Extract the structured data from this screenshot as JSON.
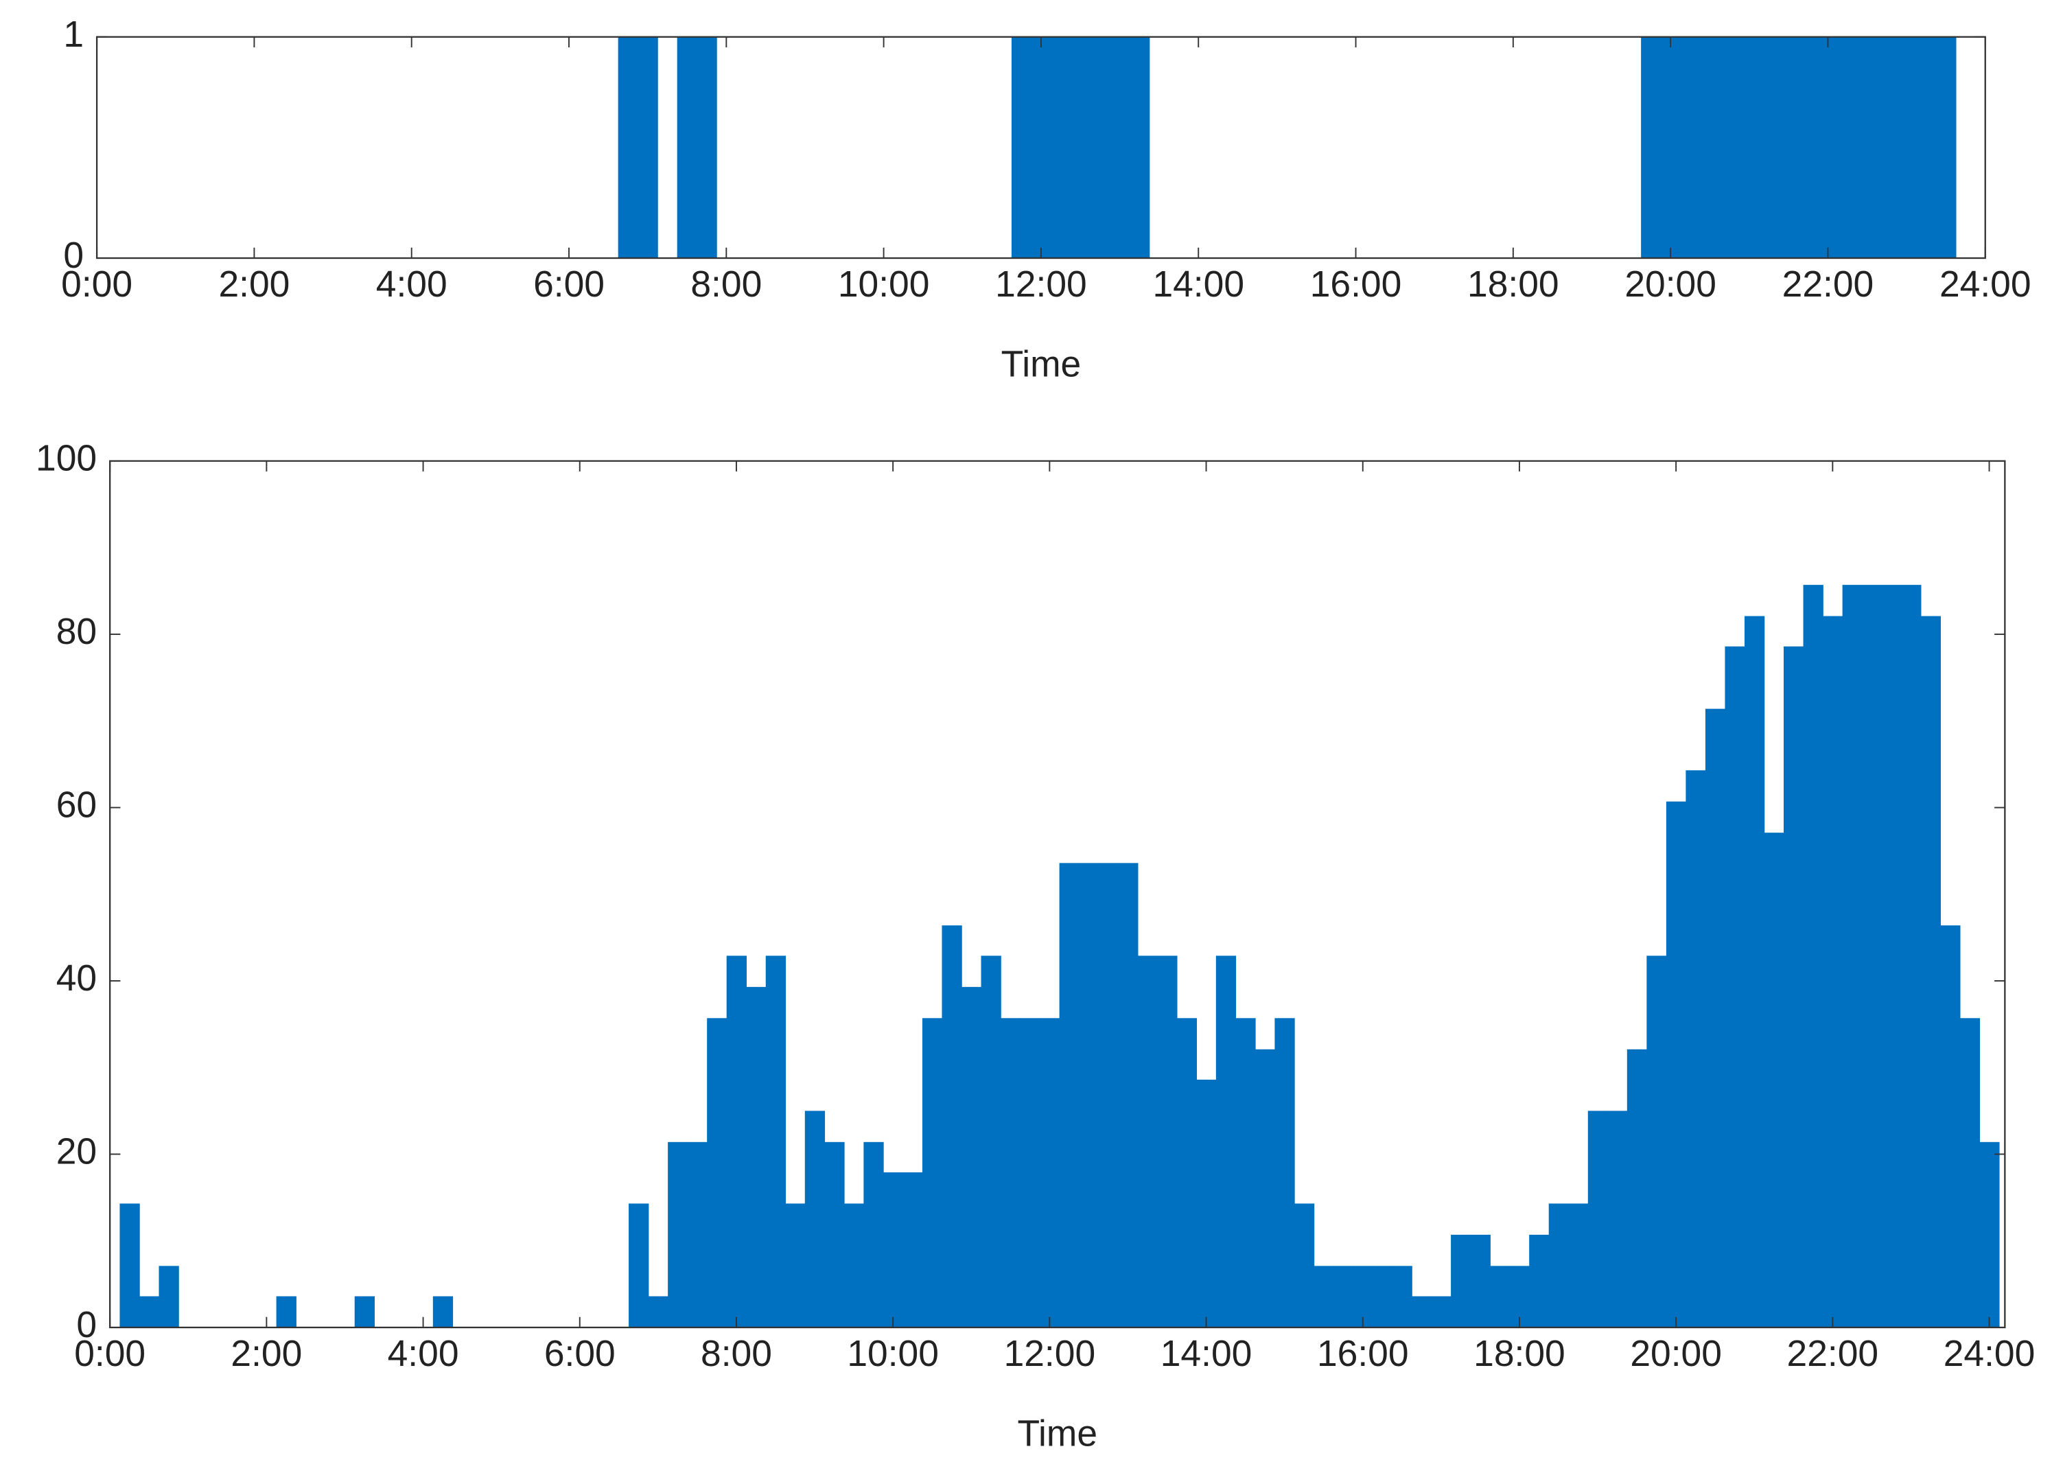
{
  "chart_data": [
    {
      "type": "histogram",
      "xlabel": "Time",
      "color": "#0070c0",
      "bins": [
        0.125,
        0.375,
        0.625,
        0.875,
        1.125,
        1.375,
        1.625,
        1.875,
        2.125,
        2.375,
        2.625,
        2.875,
        3.125,
        3.375,
        3.625,
        3.875,
        4.125,
        4.375,
        4.625,
        4.875,
        5.125,
        5.375,
        5.625,
        5.875,
        6.125,
        6.375,
        6.625,
        6.875,
        7.125,
        7.375,
        7.625,
        7.875,
        8.125,
        8.375,
        8.625,
        8.875,
        9.125,
        9.375,
        9.625,
        9.875,
        10.125,
        10.375,
        10.625,
        10.875,
        11.125,
        11.375,
        11.625,
        11.875,
        12.125,
        12.375,
        12.625,
        12.875,
        13.125,
        13.375,
        13.625,
        13.875,
        14.125,
        14.375,
        14.625,
        14.875,
        15.125,
        15.375,
        15.625,
        15.875,
        16.125,
        16.375,
        16.625,
        16.875,
        17.125,
        17.375,
        17.625,
        17.875,
        18.125,
        18.375,
        18.625,
        18.875,
        19.125,
        19.375,
        19.625,
        19.875,
        20.125,
        20.375,
        20.625,
        20.875,
        21.125,
        21.375,
        21.625,
        21.875,
        22.125,
        22.375,
        22.625,
        22.875,
        23.125,
        23.375,
        23.625,
        23.875,
        24.125
      ],
      "values": [
        0,
        0,
        0,
        0,
        0,
        0,
        0,
        0,
        0,
        0,
        0,
        0,
        0,
        0,
        0,
        0,
        0,
        0,
        0,
        0,
        0,
        0,
        0,
        0,
        0,
        0,
        1,
        1,
        0,
        1,
        1,
        0,
        0,
        0,
        0,
        0,
        0,
        0,
        0,
        0,
        0,
        0,
        0,
        0,
        0,
        0,
        1,
        1,
        1,
        1,
        1,
        1,
        1,
        0,
        0,
        0,
        0,
        0,
        0,
        0,
        0,
        0,
        0,
        0,
        0,
        0,
        0,
        0,
        0,
        0,
        0,
        0,
        0,
        0,
        0,
        0,
        0,
        0,
        1,
        1,
        1,
        1,
        1,
        1,
        1,
        1,
        1,
        1,
        1,
        1,
        1,
        1,
        1,
        1,
        0,
        0
      ],
      "xlim": [
        0,
        24
      ],
      "ylim": [
        0,
        1
      ],
      "yticks": [
        0,
        1
      ],
      "xticks": [
        {
          "value": 0,
          "label": "0:00"
        },
        {
          "value": 2,
          "label": "2:00"
        },
        {
          "value": 4,
          "label": "4:00"
        },
        {
          "value": 6,
          "label": "6:00"
        },
        {
          "value": 8,
          "label": "8:00"
        },
        {
          "value": 10,
          "label": "10:00"
        },
        {
          "value": 12,
          "label": "12:00"
        },
        {
          "value": 14,
          "label": "14:00"
        },
        {
          "value": 16,
          "label": "16:00"
        },
        {
          "value": 18,
          "label": "18:00"
        },
        {
          "value": 20,
          "label": "20:00"
        },
        {
          "value": 22,
          "label": "22:00"
        },
        {
          "value": 24,
          "label": "24:00"
        }
      ]
    },
    {
      "type": "histogram",
      "xlabel": "Time",
      "color": "#0070c0",
      "bins": [
        0.125,
        0.375,
        0.625,
        0.875,
        1.125,
        1.375,
        1.625,
        1.875,
        2.125,
        2.375,
        2.625,
        2.875,
        3.125,
        3.375,
        3.625,
        3.875,
        4.125,
        4.375,
        4.625,
        4.875,
        5.125,
        5.375,
        5.625,
        5.875,
        6.125,
        6.375,
        6.625,
        6.875,
        7.125,
        7.375,
        7.625,
        7.875,
        8.125,
        8.375,
        8.625,
        8.875,
        9.125,
        9.375,
        9.625,
        9.875,
        10.125,
        10.375,
        10.625,
        10.875,
        11.125,
        11.375,
        11.625,
        11.875,
        12.125,
        12.375,
        12.625,
        12.875,
        13.125,
        13.375,
        13.625,
        13.875,
        14.125,
        14.375,
        14.625,
        14.875,
        15.125,
        15.375,
        15.625,
        15.875,
        16.125,
        16.375,
        16.625,
        16.875,
        17.125,
        17.375,
        17.625,
        17.875,
        18.125,
        18.375,
        18.625,
        18.875,
        19.125,
        19.375,
        19.625,
        19.875,
        20.125,
        20.375,
        20.625,
        20.875,
        21.125,
        21.375,
        21.625,
        21.875,
        22.125,
        22.375,
        22.625,
        22.875,
        23.125,
        23.375,
        23.625,
        23.875,
        24.125
      ],
      "values": [
        14.3,
        3.6,
        7.1,
        0,
        0,
        0,
        0,
        0,
        3.6,
        0,
        0,
        0,
        3.6,
        0,
        0,
        0,
        3.6,
        0,
        0,
        0,
        0,
        0,
        0,
        0,
        0,
        0,
        14.3,
        3.6,
        21.4,
        21.4,
        35.7,
        42.9,
        39.3,
        42.9,
        14.3,
        25,
        21.4,
        14.3,
        21.4,
        17.9,
        17.9,
        35.7,
        46.4,
        39.3,
        42.9,
        35.7,
        35.7,
        35.7,
        53.6,
        53.6,
        53.6,
        53.6,
        42.9,
        42.9,
        35.7,
        28.6,
        42.9,
        35.7,
        32.1,
        35.7,
        14.3,
        7.1,
        7.1,
        7.1,
        7.1,
        7.1,
        3.6,
        3.6,
        10.7,
        10.7,
        7.1,
        7.1,
        10.7,
        14.3,
        14.3,
        25,
        25,
        32.1,
        42.9,
        60.7,
        64.3,
        71.4,
        78.6,
        82.1,
        57.1,
        78.6,
        85.7,
        82.1,
        85.7,
        85.7,
        85.7,
        85.7,
        82.1,
        46.4,
        35.7,
        21.4
      ],
      "xlim": [
        0,
        24.2
      ],
      "ylim": [
        0,
        100
      ],
      "yticks": [
        0,
        20,
        40,
        60,
        80,
        100
      ],
      "xticks": [
        {
          "value": 0,
          "label": "0:00"
        },
        {
          "value": 2,
          "label": "2:00"
        },
        {
          "value": 4,
          "label": "4:00"
        },
        {
          "value": 6,
          "label": "6:00"
        },
        {
          "value": 8,
          "label": "8:00"
        },
        {
          "value": 10,
          "label": "10:00"
        },
        {
          "value": 12,
          "label": "12:00"
        },
        {
          "value": 14,
          "label": "14:00"
        },
        {
          "value": 16,
          "label": "16:00"
        },
        {
          "value": 18,
          "label": "18:00"
        },
        {
          "value": 20,
          "label": "20:00"
        },
        {
          "value": 22,
          "label": "22:00"
        },
        {
          "value": 24,
          "label": "24:00"
        }
      ]
    }
  ]
}
